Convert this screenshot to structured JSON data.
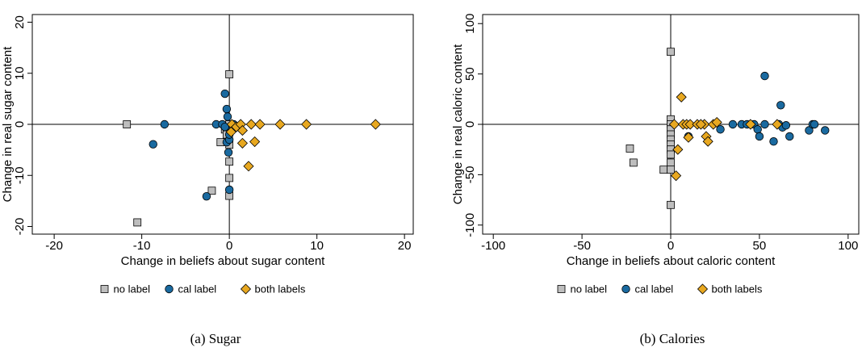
{
  "chart_data": [
    {
      "type": "scatter",
      "x_label": "Change in beliefs about sugar content",
      "y_label": "Change in real sugar content",
      "caption": "(a) Sugar",
      "xlim": [
        -22.5,
        21
      ],
      "ylim": [
        -21.5,
        21.5
      ],
      "xticks": [
        -20,
        -10,
        0,
        10,
        20
      ],
      "yticks": [
        -20,
        -10,
        0,
        10,
        20
      ],
      "zero_lines": true,
      "legend": "bottom",
      "series": [
        {
          "name": "no label",
          "color": "#bebebe",
          "marker": "square",
          "x": [
            -11.7,
            -10.5,
            -2,
            -1,
            0,
            0,
            0,
            0,
            -0.5,
            0,
            -0.3,
            0
          ],
          "values": [
            0,
            -19.2,
            -13,
            -3.5,
            9.8,
            -7.3,
            -10.5,
            -14,
            -1,
            0,
            -2,
            -4
          ]
        },
        {
          "name": "cal label",
          "color": "#1a6aa0",
          "marker": "circle",
          "x": [
            -7.4,
            -8.7,
            -2.6,
            0,
            -1.5,
            -0.8,
            -0.5,
            -0.3,
            -0.2,
            -0.3,
            0,
            -0.1,
            0,
            0.3,
            -0.5,
            0.5
          ],
          "values": [
            0,
            -3.9,
            -14.1,
            -12.8,
            0,
            0,
            6,
            3,
            1.5,
            -3.5,
            -3,
            -5.5,
            -2,
            -1,
            -0.5,
            0
          ]
        },
        {
          "name": "both labels",
          "color": "#e8a820",
          "marker": "diamond",
          "x": [
            0.3,
            0.8,
            1.3,
            1.5,
            1.5,
            2.5,
            2.9,
            3.5,
            2.2,
            5.8,
            8.8,
            16.7,
            0.2
          ],
          "values": [
            0,
            -0.5,
            0,
            -1.2,
            -3.7,
            0,
            -3.4,
            0,
            -8.2,
            0,
            0,
            0,
            -1.5
          ]
        }
      ]
    },
    {
      "type": "scatter",
      "x_label": "Change in beliefs about caloric content",
      "y_label": "Change in real caloric content",
      "caption": "(b) Calories",
      "xlim": [
        -106,
        106
      ],
      "ylim": [
        -109,
        109
      ],
      "xticks": [
        -100,
        -50,
        0,
        50,
        100
      ],
      "yticks": [
        -100,
        -50,
        0,
        50,
        100
      ],
      "zero_lines": true,
      "legend": "bottom",
      "series": [
        {
          "name": "no label",
          "color": "#bebebe",
          "marker": "square",
          "x": [
            0,
            -23,
            -21,
            -4,
            0,
            0,
            0,
            0,
            0,
            0,
            0,
            0,
            0,
            0,
            0
          ],
          "values": [
            72,
            -24,
            -38,
            -45,
            -80,
            -38,
            -45,
            5,
            0,
            -5,
            -10,
            -15,
            -20,
            -25,
            -30
          ]
        },
        {
          "name": "cal label",
          "color": "#1a6aa0",
          "marker": "circle",
          "x": [
            53,
            62,
            35,
            40,
            43,
            47,
            49,
            50,
            53,
            58,
            61,
            63,
            65,
            67,
            78,
            80,
            81,
            87,
            28,
            10
          ],
          "values": [
            48,
            19,
            0,
            0,
            0,
            0,
            -5,
            -12,
            0,
            -17,
            0,
            -3,
            -1,
            -12,
            -6,
            0,
            0,
            -6,
            -5,
            -12
          ]
        },
        {
          "name": "both labels",
          "color": "#e8a820",
          "marker": "diamond",
          "x": [
            2,
            4,
            3,
            6,
            7,
            9,
            11,
            10,
            15,
            19,
            20,
            21,
            24,
            26,
            45,
            60,
            17
          ],
          "values": [
            0,
            -25,
            -51,
            27,
            0,
            0,
            0,
            -13,
            0,
            0,
            -12,
            -17,
            0,
            2,
            0,
            0,
            0
          ]
        }
      ]
    }
  ]
}
